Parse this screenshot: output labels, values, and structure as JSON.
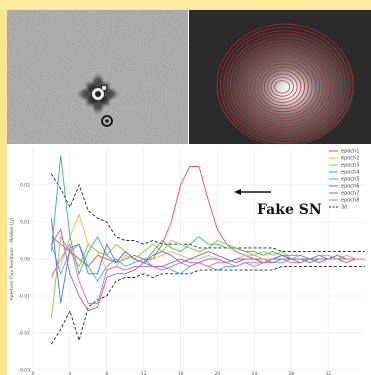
{
  "images": {
    "left": {
      "icon": "residual-cutout-image"
    },
    "right": {
      "icon": "contour-galaxy-image",
      "contour_color": "#c0262a"
    }
  },
  "annotation": {
    "text": "Fake SN"
  },
  "chart_data": {
    "type": "line",
    "ylabel": "Aperture Flux Residuals - Median (Jy)",
    "ylim": [
      -0.03,
      0.03
    ],
    "xlim": [
      0,
      36
    ],
    "yticks": [
      "-0.03",
      "-0.02",
      "-0.01",
      "0.00",
      "0.01",
      "0.02"
    ],
    "ytick_values": [
      -0.03,
      -0.02,
      -0.01,
      0.0,
      0.01,
      0.02
    ],
    "xticks": [
      0,
      4,
      8,
      12,
      16,
      20,
      24,
      28,
      32
    ],
    "legend_position": "top-right",
    "grid": true,
    "x": [
      2,
      3,
      4,
      5,
      6,
      7,
      8,
      9,
      10,
      11,
      12,
      13,
      14,
      15,
      16,
      17,
      18,
      19,
      20,
      21,
      22,
      23,
      24,
      25,
      26,
      27,
      28,
      29,
      30,
      31,
      32,
      33,
      34,
      35,
      36
    ],
    "series": [
      {
        "name": "epoch1",
        "color": "#e8514d",
        "values": [
          0.006,
          0.004,
          0.002,
          0.0,
          -0.002,
          0.001,
          0.0,
          -0.001,
          0.0,
          0.001,
          0.0,
          0.0,
          0.004,
          0.01,
          0.02,
          0.025,
          0.025,
          0.016,
          0.008,
          0.004,
          0.002,
          0.001,
          0.0,
          0.0,
          -0.001,
          0.0,
          0.0,
          -0.001,
          0.0,
          -0.001,
          0.0,
          0.0,
          -0.001,
          0.0,
          0.0
        ]
      },
      {
        "name": "epoch2",
        "color": "#e7b84a",
        "values": [
          -0.004,
          -0.002,
          0.006,
          0.012,
          0.004,
          0.002,
          -0.003,
          -0.002,
          0.001,
          0.0,
          -0.001,
          0.0,
          0.001,
          0.002,
          0.001,
          0.0,
          0.0,
          0.001,
          0.0,
          -0.001,
          0.0,
          0.001,
          0.001,
          0.0,
          0.0,
          0.001,
          0.0,
          0.0,
          0.0,
          0.001,
          0.0,
          0.0,
          0.0,
          0.0,
          0.0
        ]
      },
      {
        "name": "epoch3",
        "color": "#8dc73f",
        "values": [
          -0.016,
          0.006,
          0.002,
          -0.002,
          0.004,
          0.002,
          0.001,
          0.004,
          0.002,
          0.0,
          0.002,
          0.004,
          0.002,
          0.005,
          0.004,
          0.003,
          0.002,
          0.003,
          0.005,
          0.004,
          0.003,
          0.002,
          0.001,
          0.002,
          0.001,
          0.002,
          0.0,
          0.001,
          0.0,
          0.001,
          0.001,
          0.0,
          0.001,
          0.0,
          0.0
        ]
      },
      {
        "name": "epoch4",
        "color": "#35b889",
        "values": [
          0.002,
          0.028,
          0.006,
          -0.004,
          0.002,
          0.006,
          0.001,
          -0.001,
          0.002,
          0.0,
          -0.001,
          0.002,
          0.005,
          0.003,
          0.002,
          0.004,
          0.006,
          0.004,
          0.004,
          0.003,
          0.003,
          0.002,
          0.002,
          0.001,
          0.002,
          0.001,
          0.001,
          0.001,
          0.0,
          0.001,
          0.0,
          0.001,
          0.0,
          0.0,
          0.0
        ]
      },
      {
        "name": "epoch5",
        "color": "#3bb5d6",
        "values": [
          0.004,
          -0.004,
          0.002,
          0.004,
          -0.002,
          -0.006,
          -0.002,
          0.0,
          -0.002,
          -0.001,
          0.0,
          -0.002,
          -0.002,
          -0.003,
          -0.004,
          -0.002,
          -0.001,
          -0.002,
          -0.003,
          -0.002,
          -0.002,
          -0.001,
          -0.002,
          -0.001,
          -0.001,
          -0.001,
          0.0,
          -0.001,
          0.0,
          -0.001,
          0.0,
          0.0,
          0.0,
          0.0,
          0.0
        ]
      },
      {
        "name": "epoch6",
        "color": "#5b72d8",
        "values": [
          0.011,
          -0.012,
          0.003,
          0.004,
          -0.004,
          -0.004,
          0.004,
          -0.001,
          0.002,
          0.0,
          -0.001,
          0.001,
          0.002,
          0.001,
          -0.001,
          0.0,
          0.001,
          0.002,
          0.001,
          0.0,
          -0.001,
          0.0,
          0.0,
          -0.001,
          0.0,
          0.001,
          0.0,
          0.0,
          -0.001,
          0.0,
          0.0,
          0.001,
          0.0,
          0.0,
          0.0
        ]
      },
      {
        "name": "epoch7",
        "color": "#a05ed9",
        "values": [
          0.004,
          0.008,
          -0.004,
          -0.01,
          -0.014,
          -0.013,
          -0.005,
          -0.004,
          -0.004,
          -0.003,
          -0.001,
          -0.002,
          -0.002,
          -0.001,
          0.0,
          -0.001,
          -0.001,
          0.0,
          0.0,
          -0.001,
          0.0,
          0.0,
          0.0,
          -0.001,
          0.0,
          0.0,
          0.0,
          0.0,
          0.0,
          0.0,
          0.0,
          0.0,
          0.0,
          0.0,
          0.0
        ]
      },
      {
        "name": "epoch8",
        "color": "#e066c4",
        "values": [
          -0.005,
          0.0,
          0.004,
          -0.006,
          -0.012,
          -0.012,
          -0.003,
          -0.002,
          -0.003,
          -0.002,
          -0.002,
          -0.002,
          -0.003,
          -0.002,
          -0.001,
          -0.002,
          -0.001,
          -0.002,
          -0.001,
          -0.001,
          -0.002,
          -0.001,
          -0.001,
          -0.001,
          -0.001,
          0.0,
          -0.001,
          -0.001,
          0.0,
          -0.001,
          0.0,
          0.0,
          0.0,
          0.0,
          0.0
        ]
      }
    ],
    "band": {
      "name": "3σ",
      "color": "#222222",
      "upper": [
        0.023,
        0.019,
        0.014,
        0.02,
        0.013,
        0.011,
        0.01,
        0.006,
        0.005,
        0.005,
        0.004,
        0.005,
        0.004,
        0.004,
        0.004,
        0.004,
        0.003,
        0.003,
        0.003,
        0.003,
        0.003,
        0.003,
        0.003,
        0.003,
        0.003,
        0.002,
        0.002,
        0.002,
        0.002,
        0.002,
        0.002,
        0.002,
        0.002,
        0.002,
        0.002
      ],
      "lower": [
        -0.023,
        -0.019,
        -0.014,
        -0.022,
        -0.013,
        -0.011,
        -0.01,
        -0.006,
        -0.005,
        -0.005,
        -0.004,
        -0.005,
        -0.004,
        -0.004,
        -0.004,
        -0.004,
        -0.003,
        -0.003,
        -0.003,
        -0.003,
        -0.003,
        -0.003,
        -0.003,
        -0.003,
        -0.003,
        -0.002,
        -0.002,
        -0.002,
        -0.002,
        -0.002,
        -0.002,
        -0.002,
        -0.002,
        -0.002,
        -0.002
      ]
    }
  }
}
